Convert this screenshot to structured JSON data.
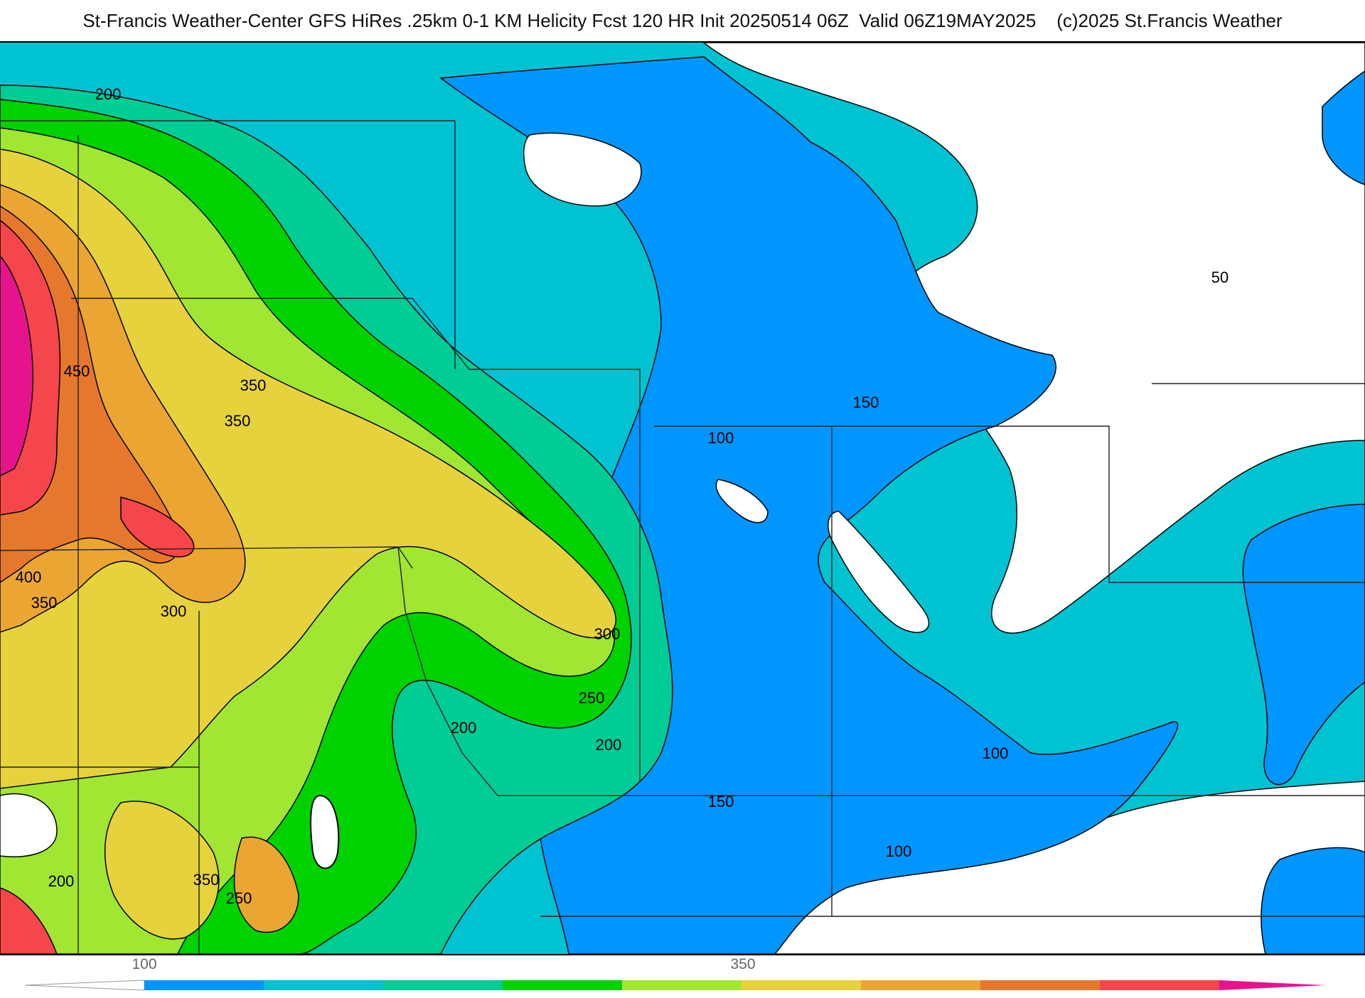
{
  "header": {
    "title": "St-Francis Weather-Center GFS HiRes .25km 0-1 KM Helicity Fcst 120 HR Init 20250514 06Z  Valid 06Z19MAY2025    (c)2025 St.Francis Weather"
  },
  "map": {
    "contour_labels": [
      {
        "text": "200"
      },
      {
        "text": "450"
      },
      {
        "text": "350"
      },
      {
        "text": "350"
      },
      {
        "text": "400"
      },
      {
        "text": "350"
      },
      {
        "text": "300"
      },
      {
        "text": "300"
      },
      {
        "text": "250"
      },
      {
        "text": "200"
      },
      {
        "text": "200"
      },
      {
        "text": "150"
      },
      {
        "text": "100"
      },
      {
        "text": "150"
      },
      {
        "text": "100"
      },
      {
        "text": "100"
      },
      {
        "text": "50"
      },
      {
        "text": "200"
      },
      {
        "text": "350"
      },
      {
        "text": "250"
      }
    ],
    "colors": {
      "white": "#ffffff",
      "blue": "#0096ff",
      "cyan": "#00c3d2",
      "teal": "#00cc96",
      "green": "#00d200",
      "lime": "#a0e632",
      "yellow": "#e6d23c",
      "orange": "#eba532",
      "darkorange": "#e6782d",
      "red": "#f5464b",
      "magenta": "#e6148c"
    }
  },
  "colorbar": {
    "tick_labels": [
      "100",
      "350"
    ],
    "colors": [
      "#0096ff",
      "#00c3d2",
      "#00cc96",
      "#00d200",
      "#a0e632",
      "#e6d23c",
      "#eba532",
      "#e6782d",
      "#f5464b",
      "#e6148c"
    ]
  }
}
